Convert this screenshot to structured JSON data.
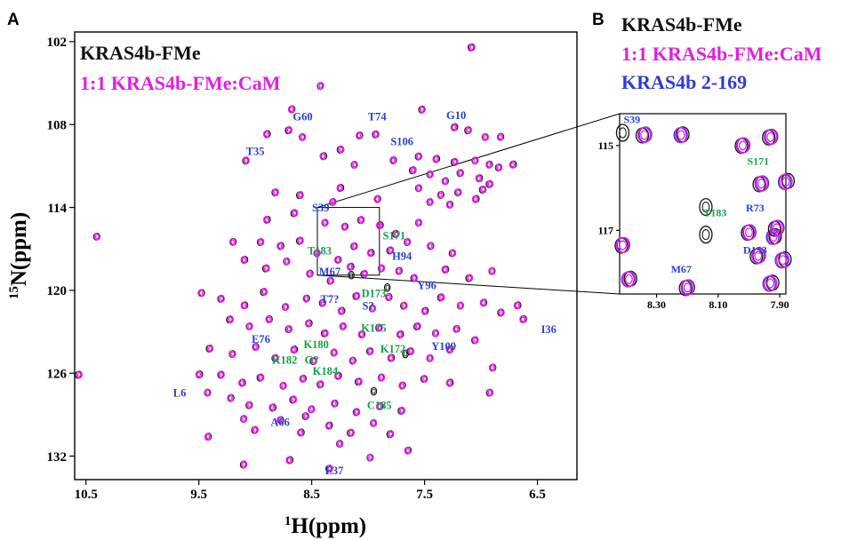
{
  "panels": {
    "a": "A",
    "b": "B"
  },
  "colors": {
    "free": "#111111",
    "complex": "#e020e0",
    "truncated": "#2e3cd8",
    "label_blue": "#2a3fcf",
    "label_green": "#13a24a"
  },
  "legend_a": [
    "KRAS4b-FMe",
    "1:1 KRAS4b-FMe:CaM"
  ],
  "legend_b": [
    "KRAS4b-FMe",
    "1:1 KRAS4b-FMe:CaM",
    "KRAS4b 2-169"
  ],
  "chart_data": [
    {
      "type": "scatter",
      "title": "",
      "xlabel": "1H(ppm)",
      "ylabel": "15N(ppm)",
      "xlabel_parts": {
        "sup": "1",
        "text": "H(ppm)"
      },
      "ylabel_parts": {
        "sup": "15",
        "text": "N(ppm)"
      },
      "x_reversed": true,
      "y_reversed": true,
      "xlim": [
        10.6,
        6.15
      ],
      "ylim": [
        101.3,
        133.7
      ],
      "xticks": [
        10.5,
        9.5,
        8.5,
        7.5,
        6.5
      ],
      "xtick_labels": [
        "10.5",
        "9.5",
        "8.5",
        "7.5",
        "6.5"
      ],
      "yticks": [
        102,
        108,
        114,
        120,
        126,
        132
      ],
      "ytick_labels": [
        "102",
        "108",
        "114",
        "120",
        "126",
        "132"
      ],
      "legend_position": "top-left",
      "series": [
        {
          "name": "KRAS4b-FMe",
          "color": "#111111"
        },
        {
          "name": "1:1 KRAS4b-FMe:CaM",
          "color": "#e020e0"
        }
      ],
      "peaks": [
        [
          7.08,
          102.4
        ],
        [
          8.42,
          105.2
        ],
        [
          8.68,
          106.9
        ],
        [
          7.52,
          106.9
        ],
        [
          8.9,
          108.7
        ],
        [
          8.7,
          108.4
        ],
        [
          8.58,
          108.9
        ],
        [
          8.08,
          108.8
        ],
        [
          7.93,
          108.7
        ],
        [
          7.24,
          108.2
        ],
        [
          7.11,
          108.4
        ],
        [
          6.96,
          108.9
        ],
        [
          6.83,
          108.9
        ],
        [
          9.08,
          110.6
        ],
        [
          8.4,
          110.3
        ],
        [
          8.24,
          109.8
        ],
        [
          8.12,
          110.9
        ],
        [
          7.78,
          110.6
        ],
        [
          7.55,
          110.3
        ],
        [
          7.4,
          110.5
        ],
        [
          7.23,
          110.7
        ],
        [
          7.05,
          110.6
        ],
        [
          6.93,
          110.9
        ],
        [
          6.84,
          111.1
        ],
        [
          6.72,
          110.9
        ],
        [
          7.6,
          111.3
        ],
        [
          7.45,
          111.6
        ],
        [
          7.32,
          112.1
        ],
        [
          7.18,
          111.5
        ],
        [
          7.02,
          111.9
        ],
        [
          6.92,
          112.3
        ],
        [
          7.55,
          112.6
        ],
        [
          7.36,
          113.1
        ],
        [
          7.2,
          112.9
        ],
        [
          7.05,
          113.4
        ],
        [
          6.98,
          112.7
        ],
        [
          7.45,
          113.6
        ],
        [
          7.28,
          113.8
        ],
        [
          8.82,
          112.9
        ],
        [
          8.25,
          112.6
        ],
        [
          8.6,
          113.1
        ],
        [
          8.31,
          113.6
        ],
        [
          7.92,
          113.4
        ],
        [
          10.4,
          116.1
        ],
        [
          8.9,
          114.9
        ],
        [
          8.65,
          114.4
        ],
        [
          8.38,
          115.1
        ],
        [
          8.21,
          115.4
        ],
        [
          8.06,
          114.9
        ],
        [
          7.9,
          115.3
        ],
        [
          7.75,
          115.9
        ],
        [
          7.55,
          115.1
        ],
        [
          9.2,
          116.5
        ],
        [
          8.95,
          116.5
        ],
        [
          8.78,
          116.8
        ],
        [
          8.6,
          116.4
        ],
        [
          8.45,
          117.3
        ],
        [
          8.27,
          117.8
        ],
        [
          8.12,
          116.8
        ],
        [
          7.98,
          117.3
        ],
        [
          7.8,
          117.1
        ],
        [
          7.65,
          116.5
        ],
        [
          7.45,
          116.8
        ],
        [
          7.25,
          117.3
        ],
        [
          9.1,
          117.8
        ],
        [
          8.9,
          118.4
        ],
        [
          8.72,
          117.9
        ],
        [
          8.52,
          118.8
        ],
        [
          8.33,
          119.3
        ],
        [
          8.16,
          118.3
        ],
        [
          8.03,
          118.8
        ],
        [
          7.88,
          118.4
        ],
        [
          7.73,
          118.6
        ],
        [
          7.59,
          119.1
        ],
        [
          7.32,
          118.5
        ],
        [
          7.1,
          119.1
        ],
        [
          6.9,
          118.6
        ],
        [
          9.48,
          120.2
        ],
        [
          9.3,
          120.6
        ],
        [
          9.1,
          121.1
        ],
        [
          8.92,
          120.1
        ],
        [
          8.73,
          121.2
        ],
        [
          8.55,
          120.6
        ],
        [
          8.4,
          120.9
        ],
        [
          8.24,
          121.5
        ],
        [
          8.1,
          120.4
        ],
        [
          7.96,
          121.3
        ],
        [
          7.82,
          120.5
        ],
        [
          7.68,
          121.1
        ],
        [
          7.5,
          121.5
        ],
        [
          7.35,
          120.5
        ],
        [
          7.18,
          121.1
        ],
        [
          6.98,
          120.9
        ],
        [
          6.82,
          121.6
        ],
        [
          6.68,
          121.1
        ],
        [
          9.22,
          122.1
        ],
        [
          9.05,
          122.6
        ],
        [
          8.88,
          122.1
        ],
        [
          8.7,
          122.8
        ],
        [
          8.53,
          122.4
        ],
        [
          8.38,
          123.1
        ],
        [
          8.22,
          122.6
        ],
        [
          8.06,
          123.2
        ],
        [
          7.9,
          122.7
        ],
        [
          7.72,
          123.2
        ],
        [
          7.56,
          122.6
        ],
        [
          7.4,
          123.1
        ],
        [
          7.22,
          122.8
        ],
        [
          7.05,
          123.6
        ],
        [
          6.63,
          122.1
        ],
        [
          9.4,
          124.2
        ],
        [
          9.2,
          124.6
        ],
        [
          9.0,
          124.1
        ],
        [
          8.82,
          124.9
        ],
        [
          8.66,
          124.3
        ],
        [
          8.48,
          125.1
        ],
        [
          8.3,
          124.5
        ],
        [
          8.14,
          125.1
        ],
        [
          7.98,
          124.4
        ],
        [
          7.8,
          124.9
        ],
        [
          7.62,
          124.4
        ],
        [
          7.45,
          124.9
        ],
        [
          7.28,
          124.3
        ],
        [
          9.3,
          126.1
        ],
        [
          9.12,
          126.7
        ],
        [
          8.95,
          126.3
        ],
        [
          8.75,
          126.9
        ],
        [
          8.58,
          126.4
        ],
        [
          8.42,
          126.8
        ],
        [
          8.27,
          126.2
        ],
        [
          8.08,
          126.6
        ],
        [
          7.88,
          126.3
        ],
        [
          7.7,
          126.9
        ],
        [
          7.5,
          126.4
        ],
        [
          9.5,
          126.1
        ],
        [
          10.56,
          126.1
        ],
        [
          9.42,
          127.4
        ],
        [
          9.22,
          127.8
        ],
        [
          9.05,
          128.3
        ],
        [
          8.85,
          128.5
        ],
        [
          8.66,
          127.9
        ],
        [
          8.5,
          128.6
        ],
        [
          8.3,
          128.2
        ],
        [
          8.1,
          128.8
        ],
        [
          7.9,
          128.4
        ],
        [
          7.7,
          128.7
        ],
        [
          9.1,
          129.3
        ],
        [
          8.78,
          129.4
        ],
        [
          8.55,
          129.1
        ],
        [
          8.35,
          129.8
        ],
        [
          8.15,
          130.3
        ],
        [
          7.95,
          129.6
        ],
        [
          9.42,
          130.6
        ],
        [
          9.0,
          130.1
        ],
        [
          8.6,
          130.3
        ],
        [
          7.8,
          130.4
        ],
        [
          8.25,
          131.1
        ],
        [
          7.65,
          131.6
        ],
        [
          9.1,
          132.6
        ],
        [
          8.7,
          132.3
        ],
        [
          8.34,
          132.9
        ],
        [
          7.98,
          132.1
        ],
        [
          6.9,
          125.6
        ],
        [
          6.92,
          127.4
        ],
        [
          7.28,
          126.7
        ]
      ],
      "free_only": [
        [
          8.15,
          118.9
        ],
        [
          7.83,
          119.8
        ],
        [
          7.67,
          124.6
        ],
        [
          7.95,
          127.3
        ]
      ],
      "labels": [
        {
          "text": "G60",
          "x": 8.58,
          "y": 107.7,
          "group": "blue"
        },
        {
          "text": "T74",
          "x": 7.92,
          "y": 107.7,
          "group": "blue"
        },
        {
          "text": "G10",
          "x": 7.22,
          "y": 107.6,
          "group": "blue"
        },
        {
          "text": "T35",
          "x": 9.0,
          "y": 110.2,
          "group": "blue"
        },
        {
          "text": "S106",
          "x": 7.7,
          "y": 109.5,
          "group": "blue"
        },
        {
          "text": "S39",
          "x": 8.42,
          "y": 114.3,
          "group": "blue"
        },
        {
          "text": "S171",
          "x": 7.77,
          "y": 116.3,
          "group": "green"
        },
        {
          "text": "T183",
          "x": 8.43,
          "y": 117.4,
          "group": "green"
        },
        {
          "text": "H94",
          "x": 7.7,
          "y": 117.8,
          "group": "blue"
        },
        {
          "text": "M67",
          "x": 8.34,
          "y": 118.9,
          "group": "blue"
        },
        {
          "text": "D173",
          "x": 7.95,
          "y": 120.5,
          "group": "green"
        },
        {
          "text": "Y96",
          "x": 7.48,
          "y": 119.9,
          "group": "blue"
        },
        {
          "text": "T7?",
          "x": 8.34,
          "y": 120.9,
          "group": "blue"
        },
        {
          "text": "S?",
          "x": 8.0,
          "y": 121.4,
          "group": "blue"
        },
        {
          "text": "K175",
          "x": 7.95,
          "y": 123.0,
          "group": "green"
        },
        {
          "text": "I36",
          "x": 6.4,
          "y": 123.1,
          "group": "blue"
        },
        {
          "text": "E76",
          "x": 8.95,
          "y": 123.8,
          "group": "blue"
        },
        {
          "text": "K180",
          "x": 8.46,
          "y": 124.2,
          "group": "green"
        },
        {
          "text": "K172",
          "x": 7.78,
          "y": 124.5,
          "group": "green"
        },
        {
          "text": "Y109",
          "x": 7.33,
          "y": 124.3,
          "group": "blue"
        },
        {
          "text": "K182",
          "x": 8.74,
          "y": 125.3,
          "group": "green"
        },
        {
          "text": "G?",
          "x": 8.5,
          "y": 125.3,
          "group": "green"
        },
        {
          "text": "K184",
          "x": 8.38,
          "y": 126.1,
          "group": "green"
        },
        {
          "text": "L6",
          "x": 9.67,
          "y": 127.7,
          "group": "blue"
        },
        {
          "text": "C185",
          "x": 7.9,
          "y": 128.6,
          "group": "green"
        },
        {
          "text": "A66",
          "x": 8.78,
          "y": 129.8,
          "group": "blue"
        },
        {
          "text": "E37",
          "x": 8.3,
          "y": 133.3,
          "group": "blue"
        }
      ],
      "zoom_region": {
        "x": [
          8.45,
          7.9
        ],
        "y": [
          114.0,
          118.9
        ]
      }
    },
    {
      "type": "scatter",
      "title": "",
      "x_reversed": true,
      "y_reversed": true,
      "xlim": [
        8.42,
        7.88
      ],
      "ylim": [
        114.25,
        118.5
      ],
      "xticks": [
        8.3,
        8.1,
        7.9
      ],
      "xtick_labels": [
        "8.30",
        "8.10",
        "7.90"
      ],
      "yticks": [
        115,
        117
      ],
      "ytick_labels": [
        "115",
        "117"
      ],
      "series": [
        {
          "name": "KRAS4b-FMe",
          "color": "#111111"
        },
        {
          "name": "1:1 KRAS4b-FMe:CaM",
          "color": "#e020e0"
        },
        {
          "name": "KRAS4b 2-169",
          "color": "#2e3cd8"
        }
      ],
      "peaks": [
        [
          8.34,
          114.75
        ],
        [
          8.02,
          115.0
        ],
        [
          8.22,
          114.75
        ],
        [
          7.93,
          114.8
        ],
        [
          7.88,
          115.85
        ],
        [
          7.96,
          115.9
        ],
        [
          8.0,
          117.05
        ],
        [
          7.92,
          117.15
        ],
        [
          7.97,
          117.6
        ],
        [
          7.89,
          117.7
        ],
        [
          7.91,
          116.95
        ],
        [
          8.41,
          117.35
        ],
        [
          8.39,
          118.15
        ],
        [
          8.2,
          118.35
        ],
        [
          7.93,
          118.25
        ]
      ],
      "free_only": [
        [
          8.14,
          116.45
        ],
        [
          8.14,
          117.1
        ],
        [
          8.41,
          114.7
        ]
      ],
      "labels": [
        {
          "text": "S39",
          "x": 8.38,
          "y": 114.47,
          "group": "blue"
        },
        {
          "text": "S171",
          "x": 7.97,
          "y": 115.45,
          "group": "green"
        },
        {
          "text": "T183",
          "x": 8.11,
          "y": 116.67,
          "group": "green"
        },
        {
          "text": "R73",
          "x": 7.98,
          "y": 116.55,
          "group": "blue"
        },
        {
          "text": "D153",
          "x": 7.98,
          "y": 117.55,
          "group": "blue"
        },
        {
          "text": "M67",
          "x": 8.22,
          "y": 118.0,
          "group": "blue"
        }
      ]
    }
  ]
}
